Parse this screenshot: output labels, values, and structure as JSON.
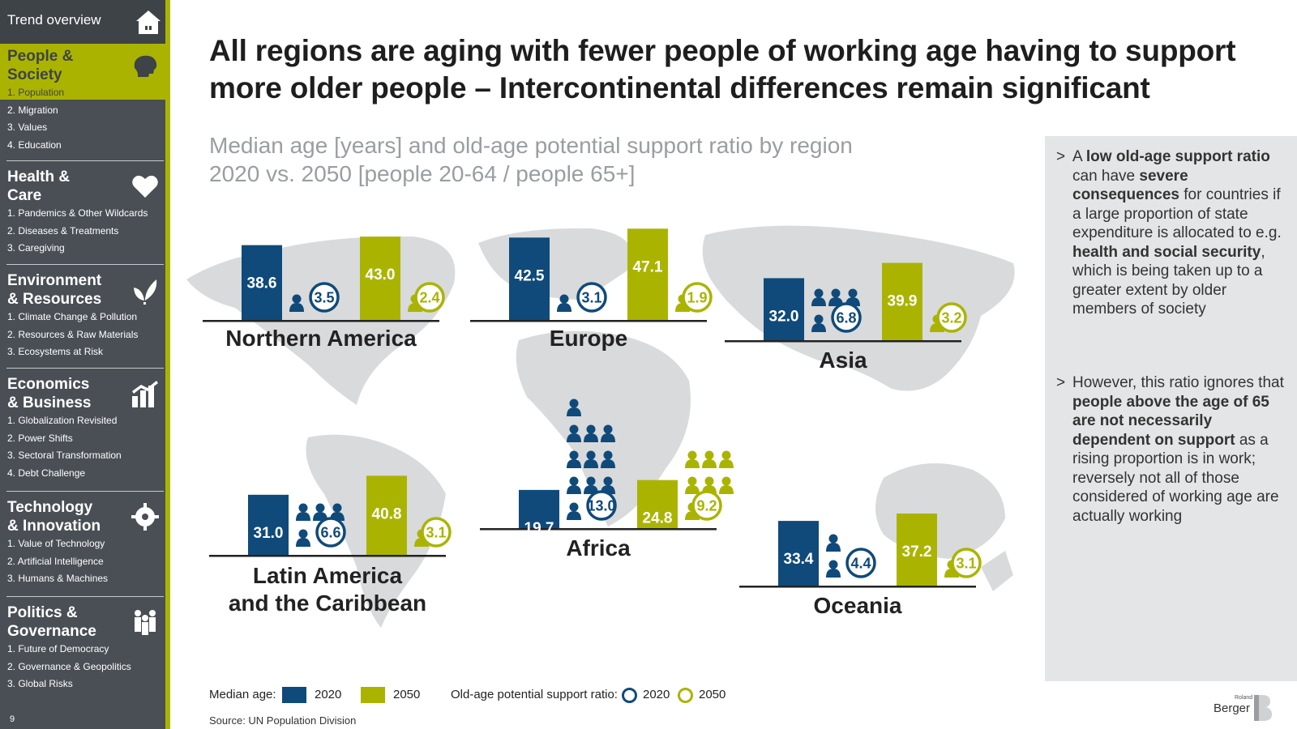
{
  "sidebar": {
    "trend_label": "Trend overview",
    "page_number": "9",
    "sections": [
      {
        "title": "People &\nSociety",
        "icon": "head-profile-icon",
        "active": true,
        "items": [
          "1. Population",
          "2. Migration",
          "3. Values",
          "4. Education"
        ]
      },
      {
        "title": "Health &\nCare",
        "icon": "heart-icon",
        "items": [
          "1. Pandemics & Other Wildcards",
          "2. Diseases & Treatments",
          "3. Caregiving"
        ]
      },
      {
        "title": "Environment\n& Resources",
        "icon": "leaf-icon",
        "items": [
          "1. Climate Change & Pollution",
          "2. Resources & Raw Materials",
          "3. Ecosystems at Risk"
        ]
      },
      {
        "title": "Economics\n& Business",
        "icon": "growth-chart-icon",
        "items": [
          "1. Globalization Revisited",
          "2. Power Shifts",
          "3. Sectoral Transformation",
          "4. Debt Challenge"
        ]
      },
      {
        "title": "Technology\n& Innovation",
        "icon": "gear-head-icon",
        "items": [
          "1. Value of Technology",
          "2. Artificial Intelligence",
          "3. Humans & Machines"
        ]
      },
      {
        "title": "Politics &\nGovernance",
        "icon": "people-group-icon",
        "items": [
          "1. Future of Democracy",
          "2. Governance & Geopolitics",
          "3. Global Risks"
        ]
      }
    ]
  },
  "title": "All regions are aging with fewer people of working age having to support more older people – Intercontinental differences remain significant",
  "subtitle_line1": "Median age [years] and old-age potential support ratio by region",
  "subtitle_line2": "2020 vs. 2050 [people 20-64 / people 65+]",
  "chart_data": {
    "type": "bar",
    "series": [
      {
        "name": "Median age 2020",
        "color": "#0f4a7a"
      },
      {
        "name": "Median age 2050",
        "color": "#aab400"
      }
    ],
    "regions": [
      {
        "name": "Northern America",
        "median_2020": 38.6,
        "median_2050": 43.0,
        "ratio_2020": 3.5,
        "ratio_2050": 2.4
      },
      {
        "name": "Europe",
        "median_2020": 42.5,
        "median_2050": 47.1,
        "ratio_2020": 3.1,
        "ratio_2050": 1.9
      },
      {
        "name": "Asia",
        "median_2020": 32.0,
        "median_2050": 39.9,
        "ratio_2020": 6.8,
        "ratio_2050": 3.2
      },
      {
        "name": "Latin America and the Caribbean",
        "median_2020": 31.0,
        "median_2050": 40.8,
        "ratio_2020": 6.6,
        "ratio_2050": 3.1
      },
      {
        "name": "Africa",
        "median_2020": 19.7,
        "median_2050": 24.8,
        "ratio_2020": 13.0,
        "ratio_2050": 9.2
      },
      {
        "name": "Oceania",
        "median_2020": 33.4,
        "median_2050": 37.2,
        "ratio_2020": 4.4,
        "ratio_2050": 3.1
      }
    ],
    "colors": {
      "y2020": "#0f4a7a",
      "y2050": "#aab400",
      "map": "#d9dadc"
    }
  },
  "info_panel": {
    "bullet1": [
      {
        "t": "A ",
        "b": false
      },
      {
        "t": "low old-age support ratio",
        "b": true
      },
      {
        "t": " can have ",
        "b": false
      },
      {
        "t": "severe consequences",
        "b": true
      },
      {
        "t": " for countries if a large proportion of state expenditure is allocated to e.g. ",
        "b": false
      },
      {
        "t": "health and social security",
        "b": true
      },
      {
        "t": ", which is being taken up to a greater extent by older members of society",
        "b": false
      }
    ],
    "bullet2": [
      {
        "t": "However, this ratio ignores that ",
        "b": false
      },
      {
        "t": "people above the age of 65 are not necessarily dependent on support",
        "b": true
      },
      {
        "t": " as a rising proportion is in work; reversely not all of those considered of working age are actually working",
        "b": false
      }
    ],
    "bullet_marker": ">"
  },
  "legend": {
    "median_label": "Median age:",
    "ratio_label": "Old-age potential support ratio:",
    "year_2020": "2020",
    "year_2050": "2050"
  },
  "source": "Source: UN Population Division",
  "logo": {
    "small": "Roland",
    "text": "Berger"
  }
}
